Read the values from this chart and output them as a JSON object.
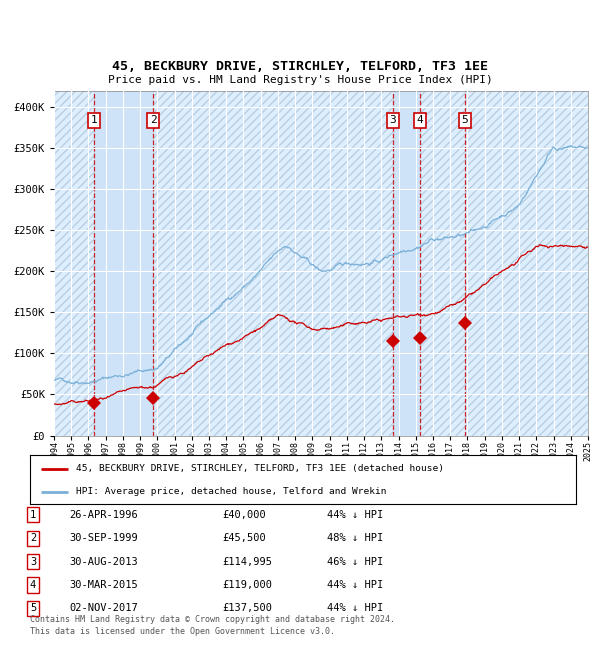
{
  "title": "45, BECKBURY DRIVE, STIRCHLEY, TELFORD, TF3 1EE",
  "subtitle": "Price paid vs. HM Land Registry's House Price Index (HPI)",
  "ylim": [
    0,
    420000
  ],
  "yticks": [
    0,
    50000,
    100000,
    150000,
    200000,
    250000,
    300000,
    350000,
    400000
  ],
  "ytick_labels": [
    "£0",
    "£50K",
    "£100K",
    "£150K",
    "£200K",
    "£250K",
    "£300K",
    "£350K",
    "£400K"
  ],
  "bg_color": "#ddeeff",
  "hpi_color": "#7ab0d8",
  "price_color": "#cc0000",
  "sale_marker_color": "#cc0000",
  "grid_color": "#ffffff",
  "hatch_color": "#b8cfe0",
  "shade_color": "#c8dff5",
  "dashed_line_color": "#cc0000",
  "sale_points": [
    {
      "label": "1",
      "date_num": 1996.32,
      "price": 40000
    },
    {
      "label": "2",
      "date_num": 1999.75,
      "price": 45500
    },
    {
      "label": "3",
      "date_num": 2013.66,
      "price": 114995
    },
    {
      "label": "4",
      "date_num": 2015.25,
      "price": 119000
    },
    {
      "label": "5",
      "date_num": 2017.84,
      "price": 137500
    }
  ],
  "legend_price_label": "45, BECKBURY DRIVE, STIRCHLEY, TELFORD, TF3 1EE (detached house)",
  "legend_hpi_label": "HPI: Average price, detached house, Telford and Wrekin",
  "table_rows": [
    [
      "1",
      "26-APR-1996",
      "£40,000",
      "44% ↓ HPI"
    ],
    [
      "2",
      "30-SEP-1999",
      "£45,500",
      "48% ↓ HPI"
    ],
    [
      "3",
      "30-AUG-2013",
      "£114,995",
      "46% ↓ HPI"
    ],
    [
      "4",
      "30-MAR-2015",
      "£119,000",
      "44% ↓ HPI"
    ],
    [
      "5",
      "02-NOV-2017",
      "£137,500",
      "44% ↓ HPI"
    ]
  ],
  "footer": "Contains HM Land Registry data © Crown copyright and database right 2024.\nThis data is licensed under the Open Government Licence v3.0.",
  "xmin": 1994,
  "xmax": 2025
}
